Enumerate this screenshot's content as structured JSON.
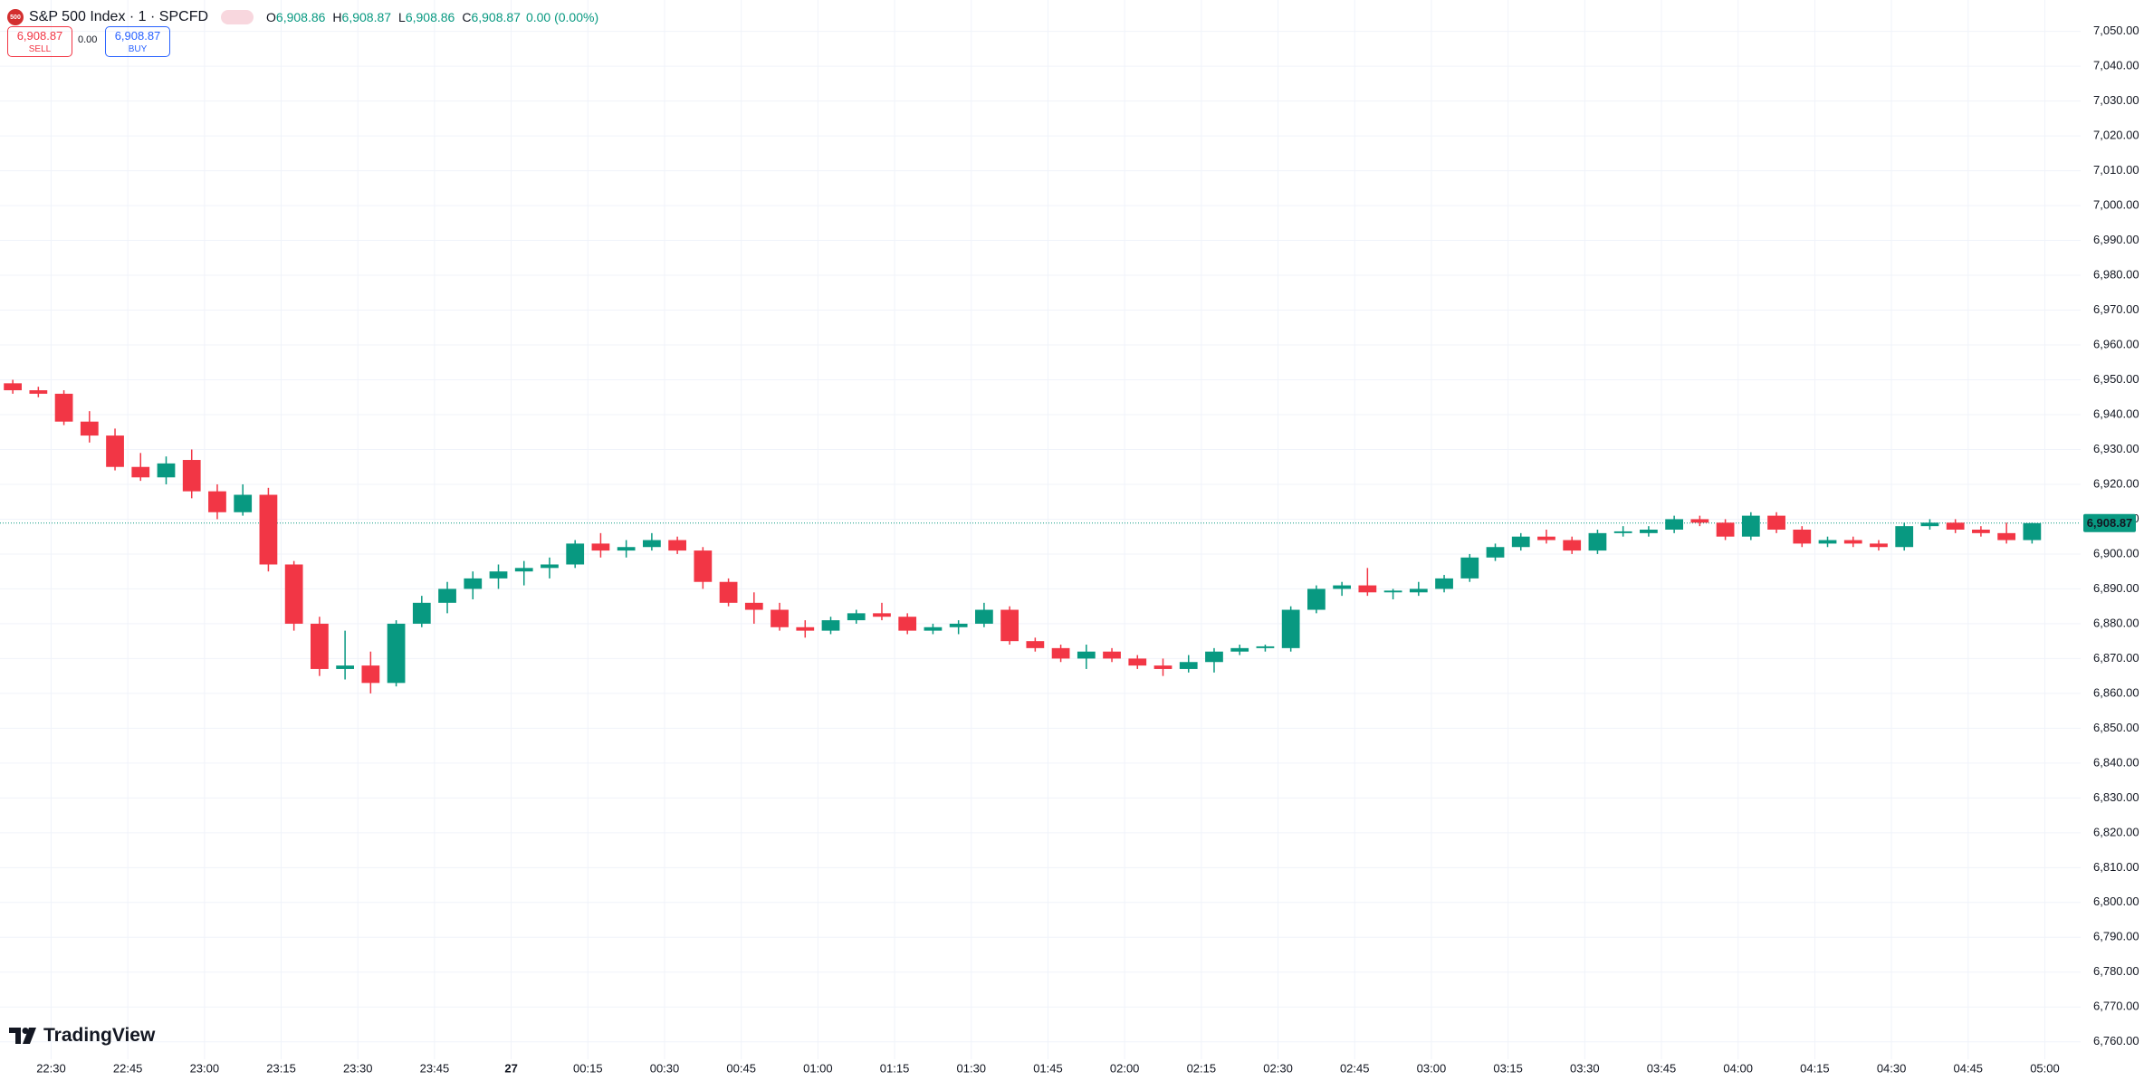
{
  "header": {
    "badge": "500",
    "symbol": "S&P 500 Index · 1 · SPCFD",
    "ohlc": [
      {
        "key": "O",
        "value": "6,908.86"
      },
      {
        "key": "H",
        "value": "6,908.87"
      },
      {
        "key": "L",
        "value": "6,908.86"
      },
      {
        "key": "C",
        "value": "6,908.87"
      }
    ],
    "change": "0.00 (0.00%)"
  },
  "trade": {
    "sell_price": "6,908.87",
    "sell": "SELL",
    "spread": "0.00",
    "buy_price": "6,908.87",
    "buy": "BUY"
  },
  "logo": "TradingView",
  "chart_data": {
    "type": "candlestick",
    "up_color": "#089981",
    "down_color": "#f23645",
    "grid": true,
    "x": [
      "22:20",
      "22:25",
      "22:30",
      "22:35",
      "22:40",
      "22:45",
      "22:50",
      "22:55",
      "23:00",
      "23:05",
      "23:10",
      "23:15",
      "23:20",
      "23:25",
      "23:30",
      "23:35",
      "23:40",
      "23:45",
      "23:50",
      "23:55",
      "00:00",
      "00:05",
      "00:10",
      "00:15",
      "00:20",
      "00:25",
      "00:30",
      "00:35",
      "00:40",
      "00:45",
      "00:50",
      "00:55",
      "01:00",
      "01:05",
      "01:10",
      "01:15",
      "01:20",
      "01:25",
      "01:30",
      "01:35",
      "01:40",
      "01:45",
      "01:50",
      "01:55",
      "02:00",
      "02:05",
      "02:10",
      "02:15",
      "02:20",
      "02:25",
      "02:30",
      "02:35",
      "02:40",
      "02:45",
      "02:50",
      "02:55",
      "03:00",
      "03:05",
      "03:10",
      "03:15",
      "03:20",
      "03:25",
      "03:30",
      "03:35",
      "03:40",
      "03:45",
      "03:50",
      "03:55",
      "04:00",
      "04:05",
      "04:10",
      "04:15",
      "04:20",
      "04:25",
      "04:30",
      "04:35",
      "04:40",
      "04:45",
      "04:50",
      "04:55"
    ],
    "candles": [
      [
        6949,
        6950,
        6946,
        6947
      ],
      [
        6947,
        6948,
        6945,
        6946
      ],
      [
        6946,
        6947,
        6937,
        6938
      ],
      [
        6938,
        6941,
        6932,
        6934
      ],
      [
        6934,
        6936,
        6924,
        6925
      ],
      [
        6925,
        6929,
        6921,
        6922
      ],
      [
        6922,
        6928,
        6920,
        6926
      ],
      [
        6927,
        6930,
        6916,
        6918
      ],
      [
        6918,
        6920,
        6910,
        6912
      ],
      [
        6912,
        6920,
        6911,
        6917
      ],
      [
        6917,
        6919,
        6895,
        6897
      ],
      [
        6897,
        6898,
        6878,
        6880
      ],
      [
        6880,
        6882,
        6865,
        6867
      ],
      [
        6867,
        6878,
        6864,
        6868
      ],
      [
        6868,
        6872,
        6860,
        6863
      ],
      [
        6863,
        6881,
        6862,
        6880
      ],
      [
        6880,
        6888,
        6879,
        6886
      ],
      [
        6886,
        6892,
        6883,
        6890
      ],
      [
        6890,
        6895,
        6887,
        6893
      ],
      [
        6893,
        6897,
        6890,
        6895
      ],
      [
        6895,
        6898,
        6891,
        6896
      ],
      [
        6896,
        6899,
        6893,
        6897
      ],
      [
        6897,
        6904,
        6896,
        6903
      ],
      [
        6903,
        6906,
        6899,
        6901
      ],
      [
        6901,
        6904,
        6899,
        6902
      ],
      [
        6902,
        6906,
        6901,
        6904
      ],
      [
        6904,
        6905,
        6900,
        6901
      ],
      [
        6901,
        6902,
        6890,
        6892
      ],
      [
        6892,
        6893,
        6885,
        6886
      ],
      [
        6886,
        6889,
        6880,
        6884
      ],
      [
        6884,
        6886,
        6878,
        6879
      ],
      [
        6879,
        6881,
        6876,
        6878
      ],
      [
        6878,
        6882,
        6877,
        6881
      ],
      [
        6881,
        6884,
        6880,
        6883
      ],
      [
        6883,
        6886,
        6881,
        6882
      ],
      [
        6882,
        6883,
        6877,
        6878
      ],
      [
        6878,
        6880,
        6877,
        6879
      ],
      [
        6879,
        6881,
        6877,
        6880
      ],
      [
        6880,
        6886,
        6879,
        6884
      ],
      [
        6884,
        6885,
        6874,
        6875
      ],
      [
        6875,
        6876,
        6872,
        6873
      ],
      [
        6873,
        6874,
        6869,
        6870
      ],
      [
        6870,
        6874,
        6867,
        6872
      ],
      [
        6872,
        6873,
        6869,
        6870
      ],
      [
        6870,
        6871,
        6867,
        6868
      ],
      [
        6868,
        6870,
        6865,
        6867
      ],
      [
        6867,
        6871,
        6866,
        6869
      ],
      [
        6869,
        6873,
        6866,
        6872
      ],
      [
        6872,
        6874,
        6871,
        6873
      ],
      [
        6873,
        6874,
        6872,
        6873.5
      ],
      [
        6873,
        6885,
        6872,
        6884
      ],
      [
        6884,
        6891,
        6883,
        6890
      ],
      [
        6890,
        6892,
        6888,
        6891
      ],
      [
        6891,
        6896,
        6888,
        6889
      ],
      [
        6889,
        6890,
        6887,
        6889.5
      ],
      [
        6889,
        6892,
        6888,
        6890
      ],
      [
        6890,
        6894,
        6889,
        6893
      ],
      [
        6893,
        6900,
        6892,
        6899
      ],
      [
        6899,
        6903,
        6898,
        6902
      ],
      [
        6902,
        6906,
        6901,
        6905
      ],
      [
        6905,
        6907,
        6903,
        6904
      ],
      [
        6904,
        6905,
        6900,
        6901
      ],
      [
        6901,
        6907,
        6900,
        6906
      ],
      [
        6906,
        6908,
        6905,
        6906.5
      ],
      [
        6906,
        6908,
        6905,
        6907
      ],
      [
        6907,
        6911,
        6906,
        6910
      ],
      [
        6910,
        6911,
        6908,
        6909
      ],
      [
        6909,
        6910,
        6904,
        6905
      ],
      [
        6905,
        6912,
        6904,
        6911
      ],
      [
        6911,
        6912,
        6906,
        6907
      ],
      [
        6907,
        6908,
        6902,
        6903
      ],
      [
        6903,
        6905,
        6902,
        6904
      ],
      [
        6904,
        6905,
        6902,
        6903
      ],
      [
        6903,
        6904,
        6901,
        6902
      ],
      [
        6902,
        6909,
        6901,
        6908
      ],
      [
        6908,
        6910,
        6907,
        6909
      ],
      [
        6909,
        6910,
        6906,
        6907
      ],
      [
        6907,
        6908,
        6905,
        6906
      ],
      [
        6906,
        6909,
        6903,
        6904
      ],
      [
        6904,
        6909,
        6903,
        6908.87
      ]
    ],
    "xlim": [
      "22:20",
      "05:07"
    ],
    "xticks": [
      "22:30",
      "22:45",
      "23:00",
      "23:15",
      "23:30",
      "23:45",
      {
        "value": "00:00",
        "label": "27"
      },
      "00:15",
      "00:30",
      "00:45",
      "01:00",
      "01:15",
      "01:30",
      "01:45",
      "02:00",
      "02:15",
      "02:30",
      "02:45",
      "03:00",
      "03:15",
      "03:30",
      "03:45",
      "04:00",
      "04:15",
      "04:30",
      "04:45",
      "05:00"
    ],
    "ylim": [
      6755,
      7059
    ],
    "yticks": [
      {
        "value": 6760,
        "label": "6,760.00"
      },
      {
        "value": 6770,
        "label": "6,770.00"
      },
      {
        "value": 6780,
        "label": "6,780.00"
      },
      {
        "value": 6790,
        "label": "6,790.00"
      },
      {
        "value": 6800,
        "label": "6,800.00"
      },
      {
        "value": 6810,
        "label": "6,810.00"
      },
      {
        "value": 6820,
        "label": "6,820.00"
      },
      {
        "value": 6830,
        "label": "6,830.00"
      },
      {
        "value": 6840,
        "label": "6,840.00"
      },
      {
        "value": 6850,
        "label": "6,850.00"
      },
      {
        "value": 6860,
        "label": "6,860.00"
      },
      {
        "value": 6870,
        "label": "6,870.00"
      },
      {
        "value": 6880,
        "label": "6,880.00"
      },
      {
        "value": 6890,
        "label": "6,890.00"
      },
      {
        "value": 6900,
        "label": "6,900.00"
      },
      {
        "value": 6910,
        "label": "6,910.00"
      },
      {
        "value": 6920,
        "label": "6,920.00"
      },
      {
        "value": 6930,
        "label": "6,930.00"
      },
      {
        "value": 6940,
        "label": "6,940.00"
      },
      {
        "value": 6950,
        "label": "6,950.00"
      },
      {
        "value": 6960,
        "label": "6,960.00"
      },
      {
        "value": 6970,
        "label": "6,970.00"
      },
      {
        "value": 6980,
        "label": "6,980.00"
      },
      {
        "value": 6990,
        "label": "6,990.00"
      },
      {
        "value": 7000,
        "label": "7,000.00"
      },
      {
        "value": 7010,
        "label": "7,010.00"
      },
      {
        "value": 7020,
        "label": "7,020.00"
      },
      {
        "value": 7030,
        "label": "7,030.00"
      },
      {
        "value": 7040,
        "label": "7,040.00"
      },
      {
        "value": 7050,
        "label": "7,050.00"
      }
    ],
    "last_price": {
      "value": 6908.87,
      "label": "6,908.87"
    }
  }
}
